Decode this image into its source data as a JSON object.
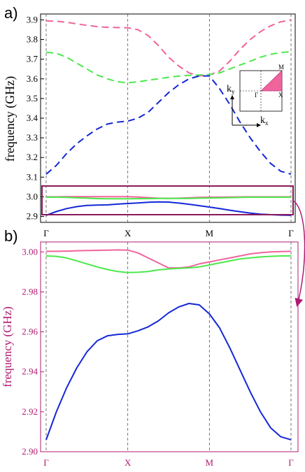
{
  "panels": {
    "a": "a)",
    "b": "b)"
  },
  "colors": {
    "pink": "#f0649c",
    "green": "#4be84b",
    "blue": "#1527d6",
    "magenta_frame": "#8a1a5c",
    "axis_b": "#b01a72"
  },
  "inset": {
    "ky": "k",
    "ky_sub": "y",
    "kx": "k",
    "kx_sub": "x",
    "M": "M",
    "X": "X",
    "Gamma": "Γ"
  },
  "chart_data": [
    {
      "type": "line",
      "panel": "a",
      "ylabel": "frequency (GHz)",
      "xlabel": "",
      "x_ticks": [
        "Γ",
        "X",
        "M",
        "Γ"
      ],
      "ylim": [
        2.87,
        3.93
      ],
      "y_ticks": [
        "2.9",
        "3.0",
        "3.1",
        "3.2",
        "3.3",
        "3.4",
        "3.5",
        "3.6",
        "3.7",
        "3.8",
        "3.9"
      ],
      "line_style": "dashed (upper bands), solid (lower bands)",
      "x": [
        0,
        0.125,
        0.25,
        0.375,
        0.5,
        0.625,
        0.75,
        0.875,
        1,
        1.125,
        1.25,
        1.375,
        1.5,
        1.625,
        1.75,
        1.875,
        2,
        2.125,
        2.25,
        2.375,
        2.5,
        2.625,
        2.75,
        2.875,
        3
      ],
      "series": [
        {
          "color": "pink",
          "dash": true,
          "values": [
            3.895,
            3.893,
            3.888,
            3.88,
            3.872,
            3.866,
            3.862,
            3.861,
            3.86,
            3.85,
            3.82,
            3.77,
            3.71,
            3.665,
            3.63,
            3.615,
            3.62,
            3.64,
            3.69,
            3.75,
            3.8,
            3.84,
            3.87,
            3.89,
            3.9
          ]
        },
        {
          "color": "green",
          "dash": true,
          "values": [
            3.735,
            3.73,
            3.71,
            3.68,
            3.65,
            3.62,
            3.6,
            3.585,
            3.58,
            3.585,
            3.593,
            3.6,
            3.608,
            3.614,
            3.618,
            3.62,
            3.622,
            3.63,
            3.65,
            3.67,
            3.69,
            3.71,
            3.725,
            3.734,
            3.738
          ]
        },
        {
          "color": "blue",
          "dash": true,
          "values": [
            3.115,
            3.16,
            3.22,
            3.27,
            3.31,
            3.345,
            3.37,
            3.38,
            3.385,
            3.4,
            3.43,
            3.48,
            3.53,
            3.57,
            3.6,
            3.615,
            3.615,
            3.55,
            3.47,
            3.38,
            3.3,
            3.23,
            3.17,
            3.13,
            3.115
          ]
        },
        {
          "color": "pink",
          "dash": false,
          "values": [
            3.0,
            3.0,
            3.0005,
            3.0007,
            3.0008,
            3.0009,
            3.001,
            3.001,
            3.0008,
            2.999,
            2.996,
            2.993,
            2.992,
            2.993,
            2.995,
            2.997,
            2.998,
            2.9985,
            2.999,
            2.9995,
            3.0,
            3.0,
            3.0,
            3.0,
            3.0
          ]
        },
        {
          "color": "green",
          "dash": false,
          "values": [
            2.998,
            2.998,
            2.997,
            2.995,
            2.993,
            2.991,
            2.99,
            2.99,
            2.99,
            2.9905,
            2.991,
            2.9915,
            2.992,
            2.992,
            2.992,
            2.993,
            2.994,
            2.995,
            2.996,
            2.997,
            2.998,
            2.998,
            2.998,
            2.998,
            2.998
          ]
        },
        {
          "color": "blue",
          "dash": false,
          "values": [
            2.906,
            2.925,
            2.94,
            2.95,
            2.956,
            2.958,
            2.959,
            2.963,
            2.966,
            2.969,
            2.972,
            2.9743,
            2.973,
            2.968,
            2.962,
            2.955,
            2.948,
            2.94,
            2.932,
            2.924,
            2.917,
            2.912,
            2.909,
            2.907,
            2.906
          ]
        }
      ]
    },
    {
      "type": "line",
      "panel": "b",
      "ylabel": "frequency (GHz)",
      "xlabel": "",
      "x_ticks": [
        "Γ",
        "X",
        "M",
        "Γ"
      ],
      "ylim": [
        2.9,
        3.005
      ],
      "y_ticks": [
        "2.90",
        "2.92",
        "2.94",
        "2.96",
        "2.98",
        "3.00"
      ],
      "x": [
        0,
        0.125,
        0.25,
        0.375,
        0.5,
        0.625,
        0.75,
        0.875,
        1,
        1.125,
        1.25,
        1.375,
        1.5,
        1.625,
        1.75,
        1.875,
        2,
        2.125,
        2.25,
        2.375,
        2.5,
        2.625,
        2.75,
        2.875,
        3
      ],
      "series": [
        {
          "color": "pink",
          "values": [
            3.0003,
            3.0003,
            3.0004,
            3.0006,
            3.0007,
            3.0008,
            3.0009,
            3.001,
            3.0009,
            2.9995,
            2.997,
            2.9945,
            2.992,
            2.992,
            2.9925,
            2.994,
            2.995,
            2.996,
            2.997,
            2.998,
            2.999,
            2.9996,
            3.0,
            3.0002,
            3.0003
          ]
        },
        {
          "color": "green",
          "values": [
            2.998,
            2.9978,
            2.997,
            2.9955,
            2.994,
            2.9925,
            2.9912,
            2.9902,
            2.9897,
            2.9898,
            2.9902,
            2.991,
            2.9915,
            2.9918,
            2.992,
            2.9925,
            2.9935,
            2.9945,
            2.9955,
            2.9965,
            2.997,
            2.9975,
            2.9978,
            2.998,
            2.998
          ]
        },
        {
          "color": "blue",
          "values": [
            2.906,
            2.92,
            2.932,
            2.942,
            2.95,
            2.9555,
            2.958,
            2.9587,
            2.959,
            2.9605,
            2.9625,
            2.9655,
            2.9695,
            2.9725,
            2.9742,
            2.9735,
            2.969,
            2.962,
            2.952,
            2.941,
            2.93,
            2.92,
            2.912,
            2.9075,
            2.906
          ]
        }
      ]
    }
  ]
}
